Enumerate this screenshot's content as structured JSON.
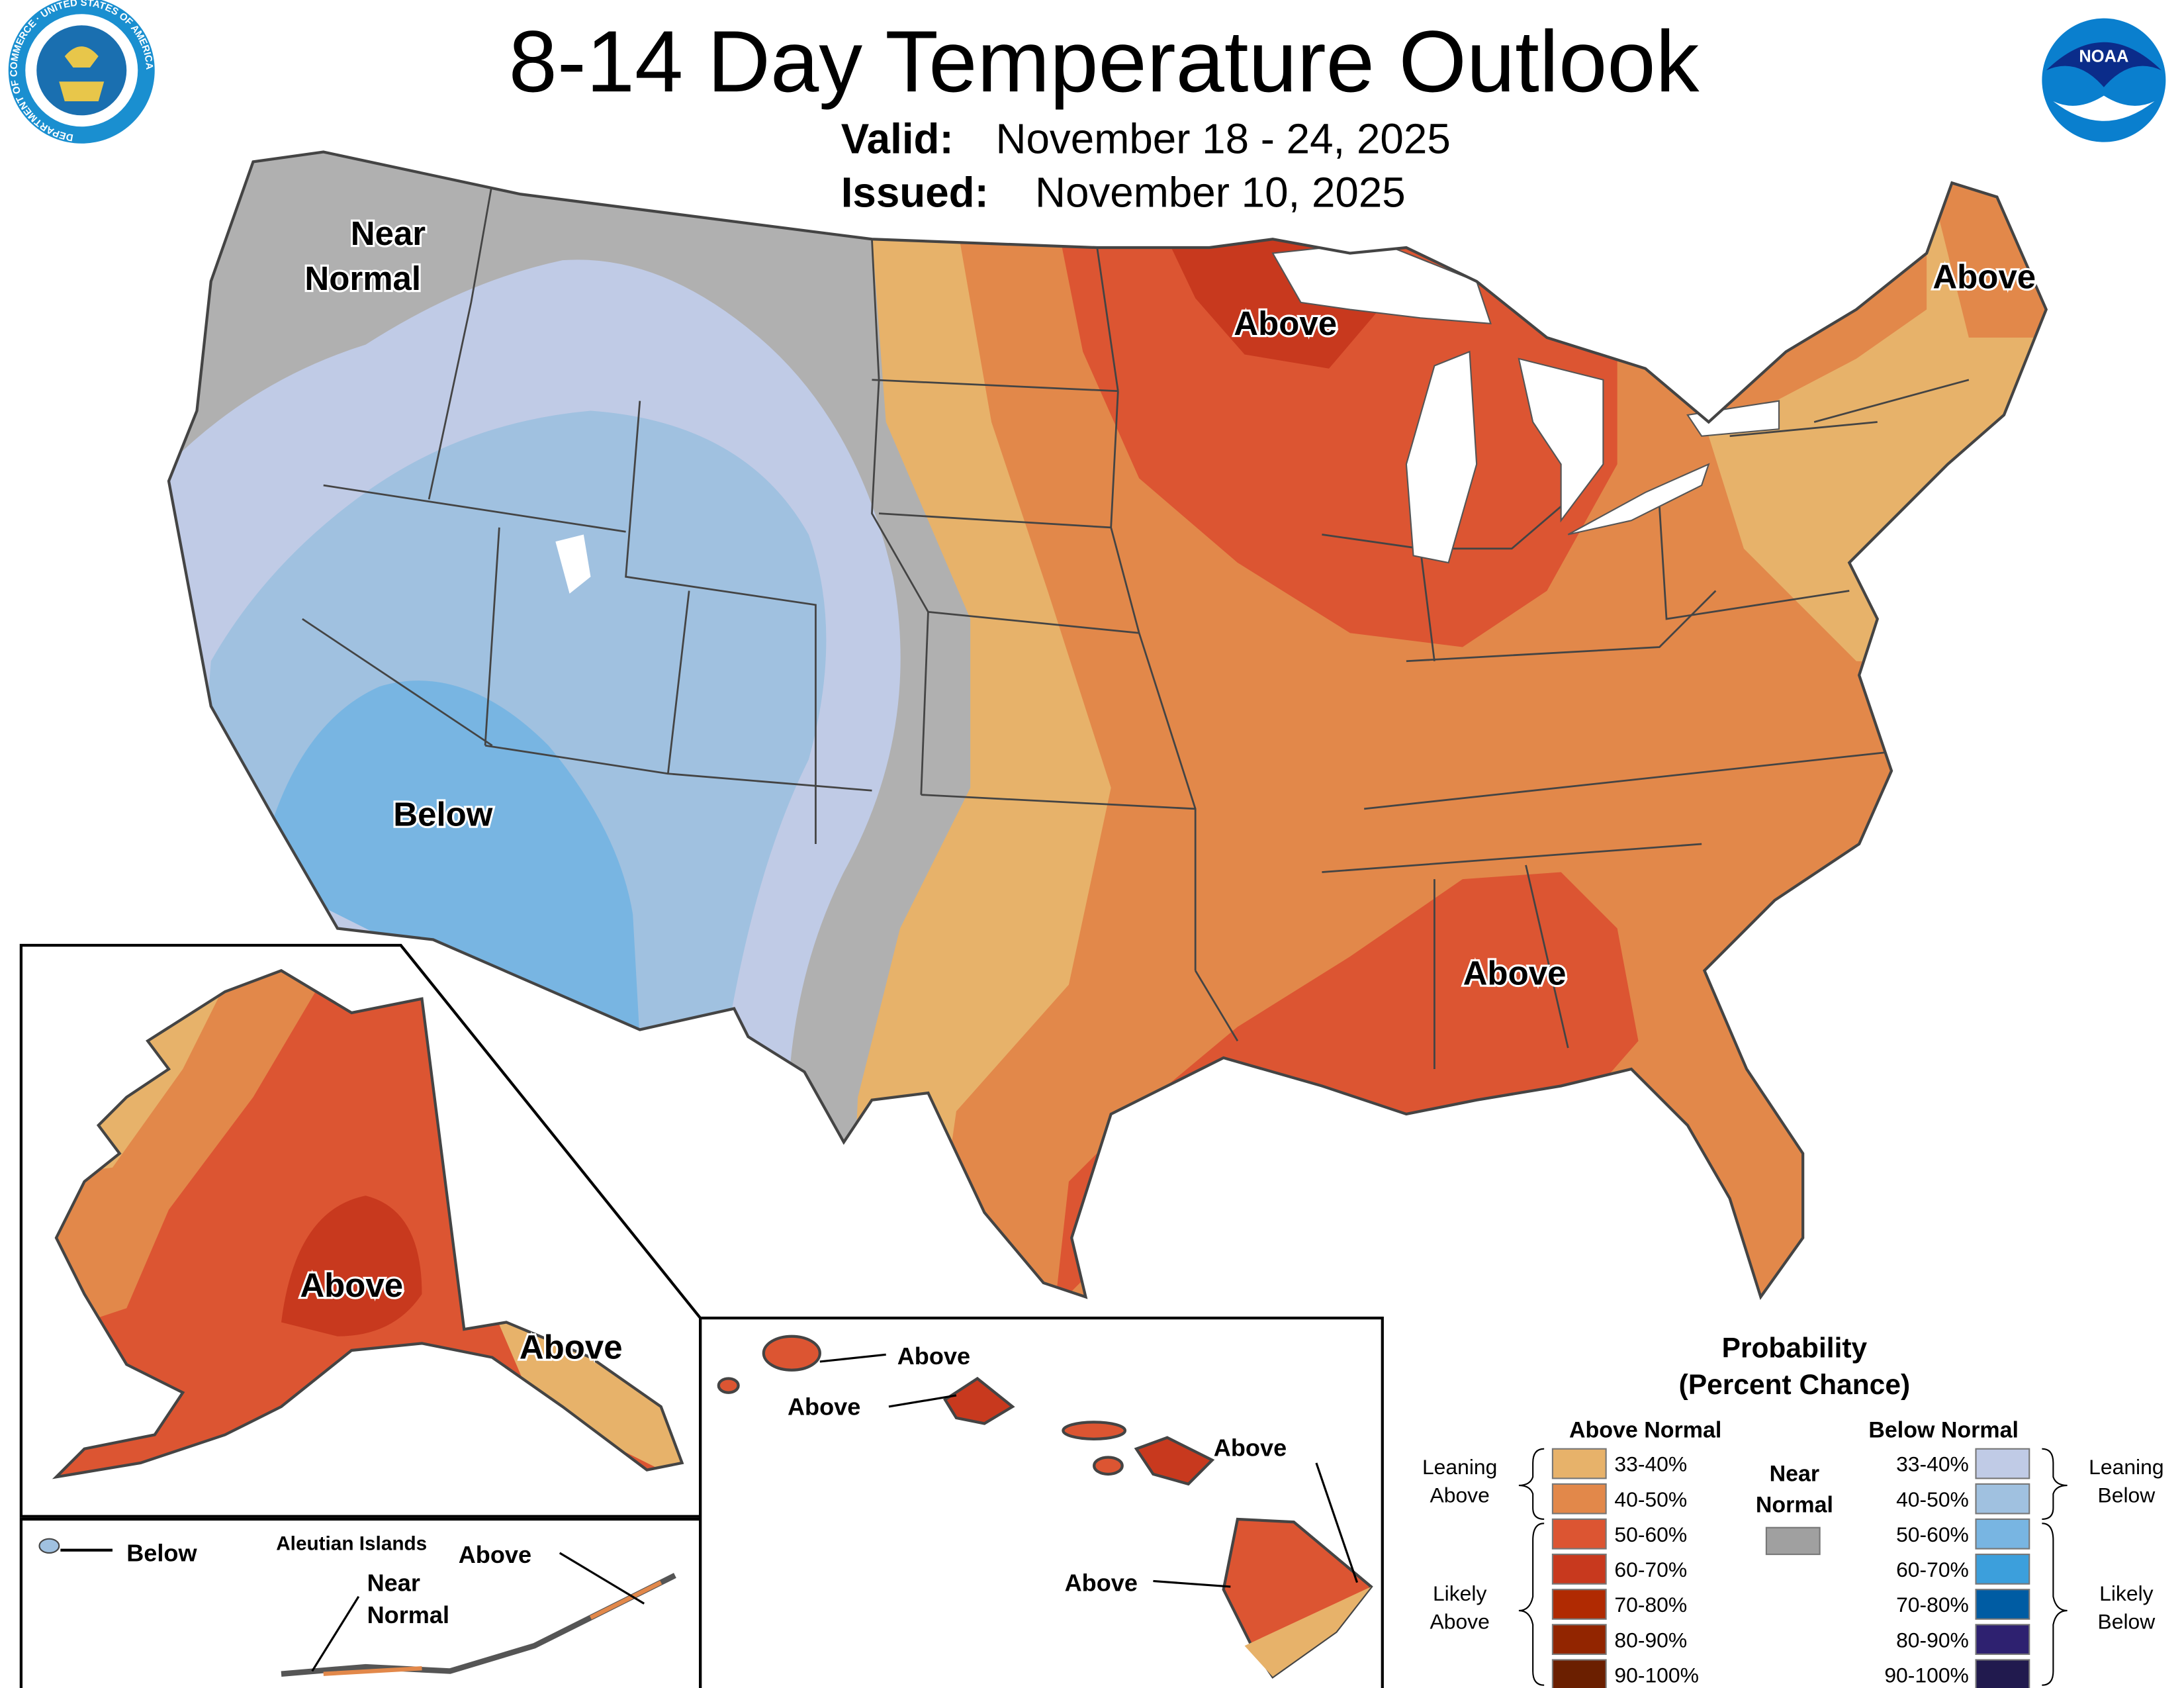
{
  "header": {
    "title": "8-14 Day Temperature Outlook",
    "valid_label": "Valid:",
    "valid_value": "November 18 - 24, 2025",
    "issued_label": "Issued:",
    "issued_value": "November 10, 2025",
    "left_logo": "Department of Commerce seal",
    "left_logo_text": "DEPARTMENT OF COMMERCE · UNITED STATES OF AMERICA",
    "right_logo": "NOAA logo",
    "right_logo_text": "NOAA"
  },
  "map_labels": {
    "northwest": [
      "Near",
      "Normal"
    ],
    "southwest": "Below",
    "upper_midwest": "Above",
    "northeast": "Above",
    "southeast": "Above"
  },
  "alaska": {
    "mainland": "Above",
    "panhandle": "Above",
    "aleutians_title": "Aleutian Islands",
    "aleutians_west": "Below",
    "aleutians_mid": [
      "Near",
      "Normal"
    ],
    "aleutians_east": "Above"
  },
  "hawaii": {
    "kauai": "Above",
    "oahu": "Above",
    "maui": "Above",
    "big_island": "Above"
  },
  "legend": {
    "title": "Probability",
    "subtitle": "(Percent Chance)",
    "above_header": "Above Normal",
    "below_header": "Below Normal",
    "near_normal": [
      "Near",
      "Normal"
    ],
    "near_normal_color": "#a0a0a0",
    "leaning_above": [
      "Leaning",
      "Above"
    ],
    "likely_above": [
      "Likely",
      "Above"
    ],
    "leaning_below": [
      "Leaning",
      "Below"
    ],
    "likely_below": [
      "Likely",
      "Below"
    ],
    "above": [
      {
        "range": "33-40%",
        "color": "#e7b26a"
      },
      {
        "range": "40-50%",
        "color": "#e2884a"
      },
      {
        "range": "50-60%",
        "color": "#dc5532"
      },
      {
        "range": "60-70%",
        "color": "#c8391e"
      },
      {
        "range": "70-80%",
        "color": "#b02a02"
      },
      {
        "range": "80-90%",
        "color": "#922500"
      },
      {
        "range": "90-100%",
        "color": "#6b1f00"
      }
    ],
    "below": [
      {
        "range": "33-40%",
        "color": "#c0cbe6"
      },
      {
        "range": "40-50%",
        "color": "#a0c1e0"
      },
      {
        "range": "50-60%",
        "color": "#78b5e2"
      },
      {
        "range": "60-70%",
        "color": "#3c9fdc"
      },
      {
        "range": "70-80%",
        "color": "#005ca3"
      },
      {
        "range": "80-90%",
        "color": "#2e2170"
      },
      {
        "range": "90-100%",
        "color": "#211a4e"
      }
    ]
  }
}
